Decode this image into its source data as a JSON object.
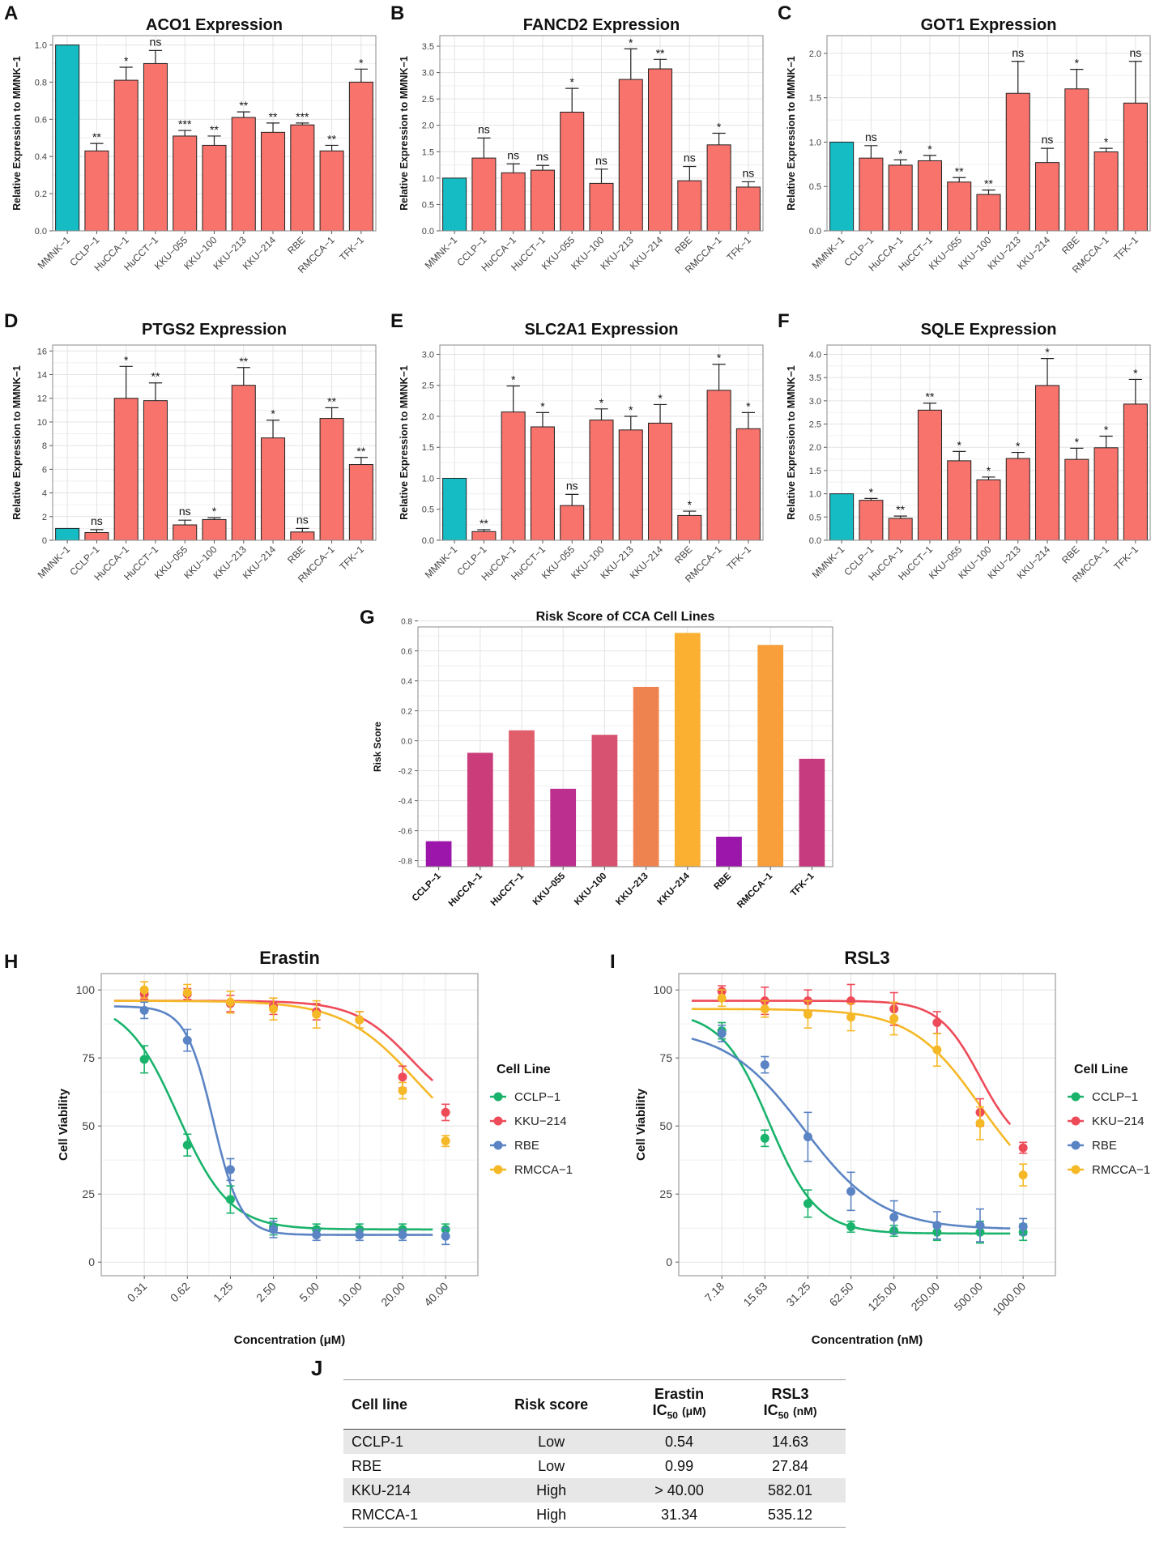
{
  "panel_labels": [
    "A",
    "B",
    "C",
    "D",
    "E",
    "F",
    "G",
    "H",
    "I",
    "J"
  ],
  "chart_data": [
    {
      "panel": "A",
      "type": "bar",
      "title": "ACO1 Expression",
      "ylabel": "Relative Expression to MMNK−1",
      "ylim": [
        0,
        1.05
      ],
      "yticks": [
        "0.0",
        "0.2",
        "0.4",
        "0.6",
        "0.8",
        "1.0"
      ],
      "ytick_values": [
        0,
        0.2,
        0.4,
        0.6,
        0.8,
        1.0
      ],
      "categories": [
        "MMNK−1",
        "CCLP−1",
        "HuCCA−1",
        "HuCCT−1",
        "KKU−055",
        "KKU−100",
        "KKU−213",
        "KKU−214",
        "RBE",
        "RMCCA−1",
        "TFK−1"
      ],
      "values": [
        1.0,
        0.43,
        0.81,
        0.9,
        0.51,
        0.46,
        0.61,
        0.53,
        0.57,
        0.43,
        0.8
      ],
      "errors": [
        0,
        0.04,
        0.07,
        0.07,
        0.03,
        0.05,
        0.03,
        0.05,
        0.01,
        0.03,
        0.07
      ],
      "significance": [
        "",
        "**",
        "*",
        "ns",
        "***",
        "**",
        "**",
        "**",
        "***",
        "**",
        "*"
      ]
    },
    {
      "panel": "B",
      "type": "bar",
      "title": "FANCD2 Expression",
      "ylabel": "Relative Expression to MMNK−1",
      "ylim": [
        0,
        3.7
      ],
      "yticks": [
        "0.0",
        "0.5",
        "1.0",
        "1.5",
        "2.0",
        "2.5",
        "3.0",
        "3.5"
      ],
      "ytick_values": [
        0,
        0.5,
        1.0,
        1.5,
        2.0,
        2.5,
        3.0,
        3.5
      ],
      "categories": [
        "MMNK−1",
        "CCLP−1",
        "HuCCA−1",
        "HuCCT−1",
        "KKU−055",
        "KKU−100",
        "KKU−213",
        "KKU−214",
        "RBE",
        "RMCCA−1",
        "TFK−1"
      ],
      "values": [
        1.0,
        1.38,
        1.1,
        1.15,
        2.25,
        0.9,
        2.87,
        3.07,
        0.95,
        1.63,
        0.83
      ],
      "errors": [
        0,
        0.38,
        0.17,
        0.09,
        0.45,
        0.27,
        0.58,
        0.18,
        0.27,
        0.22,
        0.1
      ],
      "significance": [
        "",
        "ns",
        "ns",
        "ns",
        "*",
        "ns",
        "*",
        "**",
        "ns",
        "*",
        "ns"
      ]
    },
    {
      "panel": "C",
      "type": "bar",
      "title": "GOT1 Expression",
      "ylabel": "Relative Expression to MMNK−1",
      "ylim": [
        0,
        2.2
      ],
      "yticks": [
        "0.0",
        "0.5",
        "1.0",
        "1.5",
        "2.0"
      ],
      "ytick_values": [
        0,
        0.5,
        1.0,
        1.5,
        2.0
      ],
      "categories": [
        "MMNK−1",
        "CCLP−1",
        "HuCCA−1",
        "HuCCT−1",
        "KKU−055",
        "KKU−100",
        "KKU−213",
        "KKU−214",
        "RBE",
        "RMCCA−1",
        "TFK−1"
      ],
      "values": [
        1.0,
        0.82,
        0.74,
        0.79,
        0.55,
        0.41,
        1.55,
        0.77,
        1.6,
        0.89,
        1.44
      ],
      "errors": [
        0,
        0.14,
        0.06,
        0.06,
        0.05,
        0.05,
        0.36,
        0.16,
        0.22,
        0.04,
        0.47
      ],
      "significance": [
        "",
        "ns",
        "*",
        "*",
        "**",
        "**",
        "ns",
        "ns",
        "*",
        "*",
        "ns"
      ]
    },
    {
      "panel": "D",
      "type": "bar",
      "title": "PTGS2 Expression",
      "ylabel": "Relative Expression to MMNK−1",
      "ylim": [
        0,
        16.5
      ],
      "yticks": [
        "0",
        "2",
        "4",
        "6",
        "8",
        "10",
        "12",
        "14",
        "16"
      ],
      "ytick_values": [
        0,
        2,
        4,
        6,
        8,
        10,
        12,
        14,
        16
      ],
      "categories": [
        "MMNK−1",
        "CCLP−1",
        "HuCCA−1",
        "HuCCT−1",
        "KKU−055",
        "KKU−100",
        "KKU−213",
        "KKU−214",
        "RBE",
        "RMCCA−1",
        "TFK−1"
      ],
      "values": [
        1.0,
        0.65,
        12.0,
        11.8,
        1.3,
        1.75,
        13.1,
        8.65,
        0.7,
        10.3,
        6.4
      ],
      "errors": [
        0,
        0.25,
        2.7,
        1.5,
        0.4,
        0.15,
        1.5,
        1.5,
        0.3,
        0.9,
        0.6
      ],
      "significance": [
        "",
        "ns",
        "*",
        "**",
        "ns",
        "*",
        "**",
        "*",
        "ns",
        "**",
        "**"
      ]
    },
    {
      "panel": "E",
      "type": "bar",
      "title": "SLC2A1 Expression",
      "ylabel": "Relative Expression to MMNK−1",
      "ylim": [
        0,
        3.15
      ],
      "yticks": [
        "0.0",
        "0.5",
        "1.0",
        "1.5",
        "2.0",
        "2.5",
        "3.0"
      ],
      "ytick_values": [
        0,
        0.5,
        1.0,
        1.5,
        2.0,
        2.5,
        3.0
      ],
      "categories": [
        "MMNK−1",
        "CCLP−1",
        "HuCCA−1",
        "HuCCT−1",
        "KKU−055",
        "KKU−100",
        "KKU−213",
        "KKU−214",
        "RBE",
        "RMCCA−1",
        "TFK−1"
      ],
      "values": [
        1.0,
        0.14,
        2.07,
        1.83,
        0.56,
        1.94,
        1.78,
        1.89,
        0.4,
        2.42,
        1.8
      ],
      "errors": [
        0,
        0.03,
        0.42,
        0.23,
        0.18,
        0.18,
        0.22,
        0.3,
        0.07,
        0.42,
        0.26
      ],
      "significance": [
        "",
        "**",
        "*",
        "*",
        "ns",
        "*",
        "*",
        "*",
        "*",
        "*",
        "*"
      ]
    },
    {
      "panel": "F",
      "type": "bar",
      "title": "SQLE Expression",
      "ylabel": "Relative Expression to MMNK−1",
      "ylim": [
        0,
        4.2
      ],
      "yticks": [
        "0.0",
        "0.5",
        "1.0",
        "1.5",
        "2.0",
        "2.5",
        "3.0",
        "3.5",
        "4.0"
      ],
      "ytick_values": [
        0,
        0.5,
        1.0,
        1.5,
        2.0,
        2.5,
        3.0,
        3.5,
        4.0
      ],
      "categories": [
        "MMNK−1",
        "CCLP−1",
        "HuCCA−1",
        "HuCCT−1",
        "KKU−055",
        "KKU−100",
        "KKU−213",
        "KKU−214",
        "RBE",
        "RMCCA−1",
        "TFK−1"
      ],
      "values": [
        1.0,
        0.86,
        0.47,
        2.8,
        1.71,
        1.3,
        1.76,
        3.33,
        1.74,
        1.99,
        2.93
      ],
      "errors": [
        0,
        0.04,
        0.05,
        0.15,
        0.2,
        0.06,
        0.13,
        0.58,
        0.24,
        0.25,
        0.53
      ],
      "significance": [
        "",
        "*",
        "**",
        "**",
        "*",
        "*",
        "*",
        "*",
        "*",
        "*",
        "*"
      ]
    },
    {
      "panel": "G",
      "type": "bar",
      "title": "Risk Score of CCA Cell Lines",
      "ylabel": "Risk Score",
      "xlabel": "",
      "ylim": [
        -0.84,
        0.76
      ],
      "yticks": [
        "-0.8",
        "-0.6",
        "-0.4",
        "-0.2",
        "0.0",
        "0.2",
        "0.4",
        "0.6",
        "0.8"
      ],
      "ytick_values": [
        -0.8,
        -0.6,
        -0.4,
        -0.2,
        0,
        0.2,
        0.4,
        0.6,
        0.8
      ],
      "categories": [
        "CCLP−1",
        "HuCCA−1",
        "HuCCT−1",
        "KKU−055",
        "KKU−100",
        "KKU−213",
        "KKU−214",
        "RBE",
        "RMCCA−1",
        "TFK−1"
      ],
      "values": [
        -0.67,
        -0.08,
        0.07,
        -0.32,
        0.04,
        0.36,
        0.72,
        -0.64,
        0.64,
        -0.12
      ],
      "colors": [
        "#9c16ab",
        "#ca3c7a",
        "#e15e6b",
        "#bc2f8e",
        "#d65270",
        "#ef8350",
        "#fbb031",
        "#9c16ab",
        "#f89e3a",
        "#c63a7f"
      ]
    },
    {
      "panel": "H",
      "type": "line",
      "title": "Erastin",
      "xlabel": "Concentration (μM)",
      "ylabel": "Cell Viability",
      "ylim": [
        -5,
        106
      ],
      "xtick_labels": [
        "0.31",
        "0.62",
        "1.25",
        "2.50",
        "5.00",
        "10.00",
        "20.00",
        "40.00"
      ],
      "yticks": [
        "0",
        "25",
        "50",
        "75",
        "100"
      ],
      "ytick_values": [
        0,
        25,
        50,
        75,
        100
      ],
      "legend_title": "Cell Line",
      "series": [
        {
          "name": "CCLP−1",
          "color": "#19b36b",
          "values": [
            74.5,
            43,
            23,
            13,
            12,
            12,
            12,
            12
          ],
          "errors": [
            5,
            4,
            5,
            3,
            2,
            2,
            2,
            2
          ],
          "fit": {
            "top": 96,
            "bottom": 12,
            "ic50_index": 0.78,
            "slope": 2.4
          }
        },
        {
          "name": "KKU−214",
          "color": "#ee4b59",
          "values": [
            98.5,
            98.5,
            95,
            94,
            92,
            89,
            68,
            55
          ],
          "errors": [
            2,
            2,
            3,
            3,
            3,
            3,
            4,
            3
          ],
          "fit": {
            "top": 96,
            "bottom": 53,
            "ic50_index": 6.2,
            "slope": 2.2
          }
        },
        {
          "name": "RBE",
          "color": "#5b84c4",
          "values": [
            92.5,
            81.5,
            34,
            12,
            10,
            10,
            10,
            9.5
          ],
          "errors": [
            3,
            4,
            4,
            3,
            2,
            2,
            2,
            3
          ],
          "fit": {
            "top": 94,
            "bottom": 10,
            "ic50_index": 1.6,
            "slope": 4.5
          }
        },
        {
          "name": "RMCCA−1",
          "color": "#f5b826",
          "values": [
            100,
            99,
            95.5,
            93,
            91,
            89,
            63,
            44.5
          ],
          "errors": [
            3,
            3,
            4,
            4,
            5,
            3,
            3,
            2
          ],
          "fit": {
            "top": 96,
            "bottom": 38,
            "ic50_index": 6.3,
            "slope": 1.7
          }
        }
      ]
    },
    {
      "panel": "I",
      "type": "line",
      "title": "RSL3",
      "xlabel": "Concentration (nM)",
      "ylabel": "Cell Viability",
      "ylim": [
        -5,
        106
      ],
      "xtick_labels": [
        "7.18",
        "15.63",
        "31.25",
        "62.50",
        "125.00",
        "250.00",
        "500.00",
        "1000.00"
      ],
      "yticks": [
        "0",
        "25",
        "50",
        "75",
        "100"
      ],
      "ytick_values": [
        0,
        25,
        50,
        75,
        100
      ],
      "legend_title": "Cell Line",
      "series": [
        {
          "name": "CCLP−1",
          "color": "#19b36b",
          "values": [
            85,
            45.5,
            21.5,
            13,
            11.5,
            11,
            11,
            11
          ],
          "errors": [
            3,
            3,
            5,
            2,
            2,
            3,
            4,
            3
          ],
          "fit": {
            "top": 92,
            "bottom": 10.5,
            "ic50_index": 1.1,
            "slope": 2.6
          }
        },
        {
          "name": "KKU−214",
          "color": "#ee4b59",
          "values": [
            99.5,
            96,
            96,
            96,
            93,
            88,
            55,
            42
          ],
          "errors": [
            2,
            5,
            4,
            6,
            6,
            4,
            5,
            2
          ],
          "fit": {
            "top": 96,
            "bottom": 40,
            "ic50_index": 6.0,
            "slope": 3.0
          }
        },
        {
          "name": "RBE",
          "color": "#5b84c4",
          "values": [
            84,
            72.5,
            46,
            26,
            16.5,
            13.5,
            13.5,
            13
          ],
          "errors": [
            3,
            3,
            9,
            7,
            6,
            5,
            6,
            3
          ],
          "fit": {
            "top": 86,
            "bottom": 12,
            "ic50_index": 1.9,
            "slope": 1.6
          }
        },
        {
          "name": "RMCCA−1",
          "color": "#f5b826",
          "values": [
            97,
            93,
            91,
            90,
            89.5,
            78,
            51,
            32
          ],
          "errors": [
            3,
            3,
            5,
            5,
            6,
            6,
            6,
            4
          ],
          "fit": {
            "top": 93,
            "bottom": 22,
            "ic50_index": 6.0,
            "slope": 1.8
          }
        }
      ]
    },
    {
      "panel": "J",
      "type": "table",
      "columns": [
        "Cell line",
        "Risk score",
        "Erastin",
        "RSL3"
      ],
      "ic50_label": "IC",
      "ic50_sub": "50",
      "units": [
        "(μM)",
        "(nM)"
      ],
      "rows": [
        [
          "CCLP-1",
          "Low",
          "0.54",
          "14.63"
        ],
        [
          "RBE",
          "Low",
          "0.99",
          "27.84"
        ],
        [
          "KKU-214",
          "High",
          "> 40.00",
          "582.01"
        ],
        [
          "RMCCA-1",
          "High",
          "31.34",
          "535.12"
        ]
      ]
    }
  ]
}
